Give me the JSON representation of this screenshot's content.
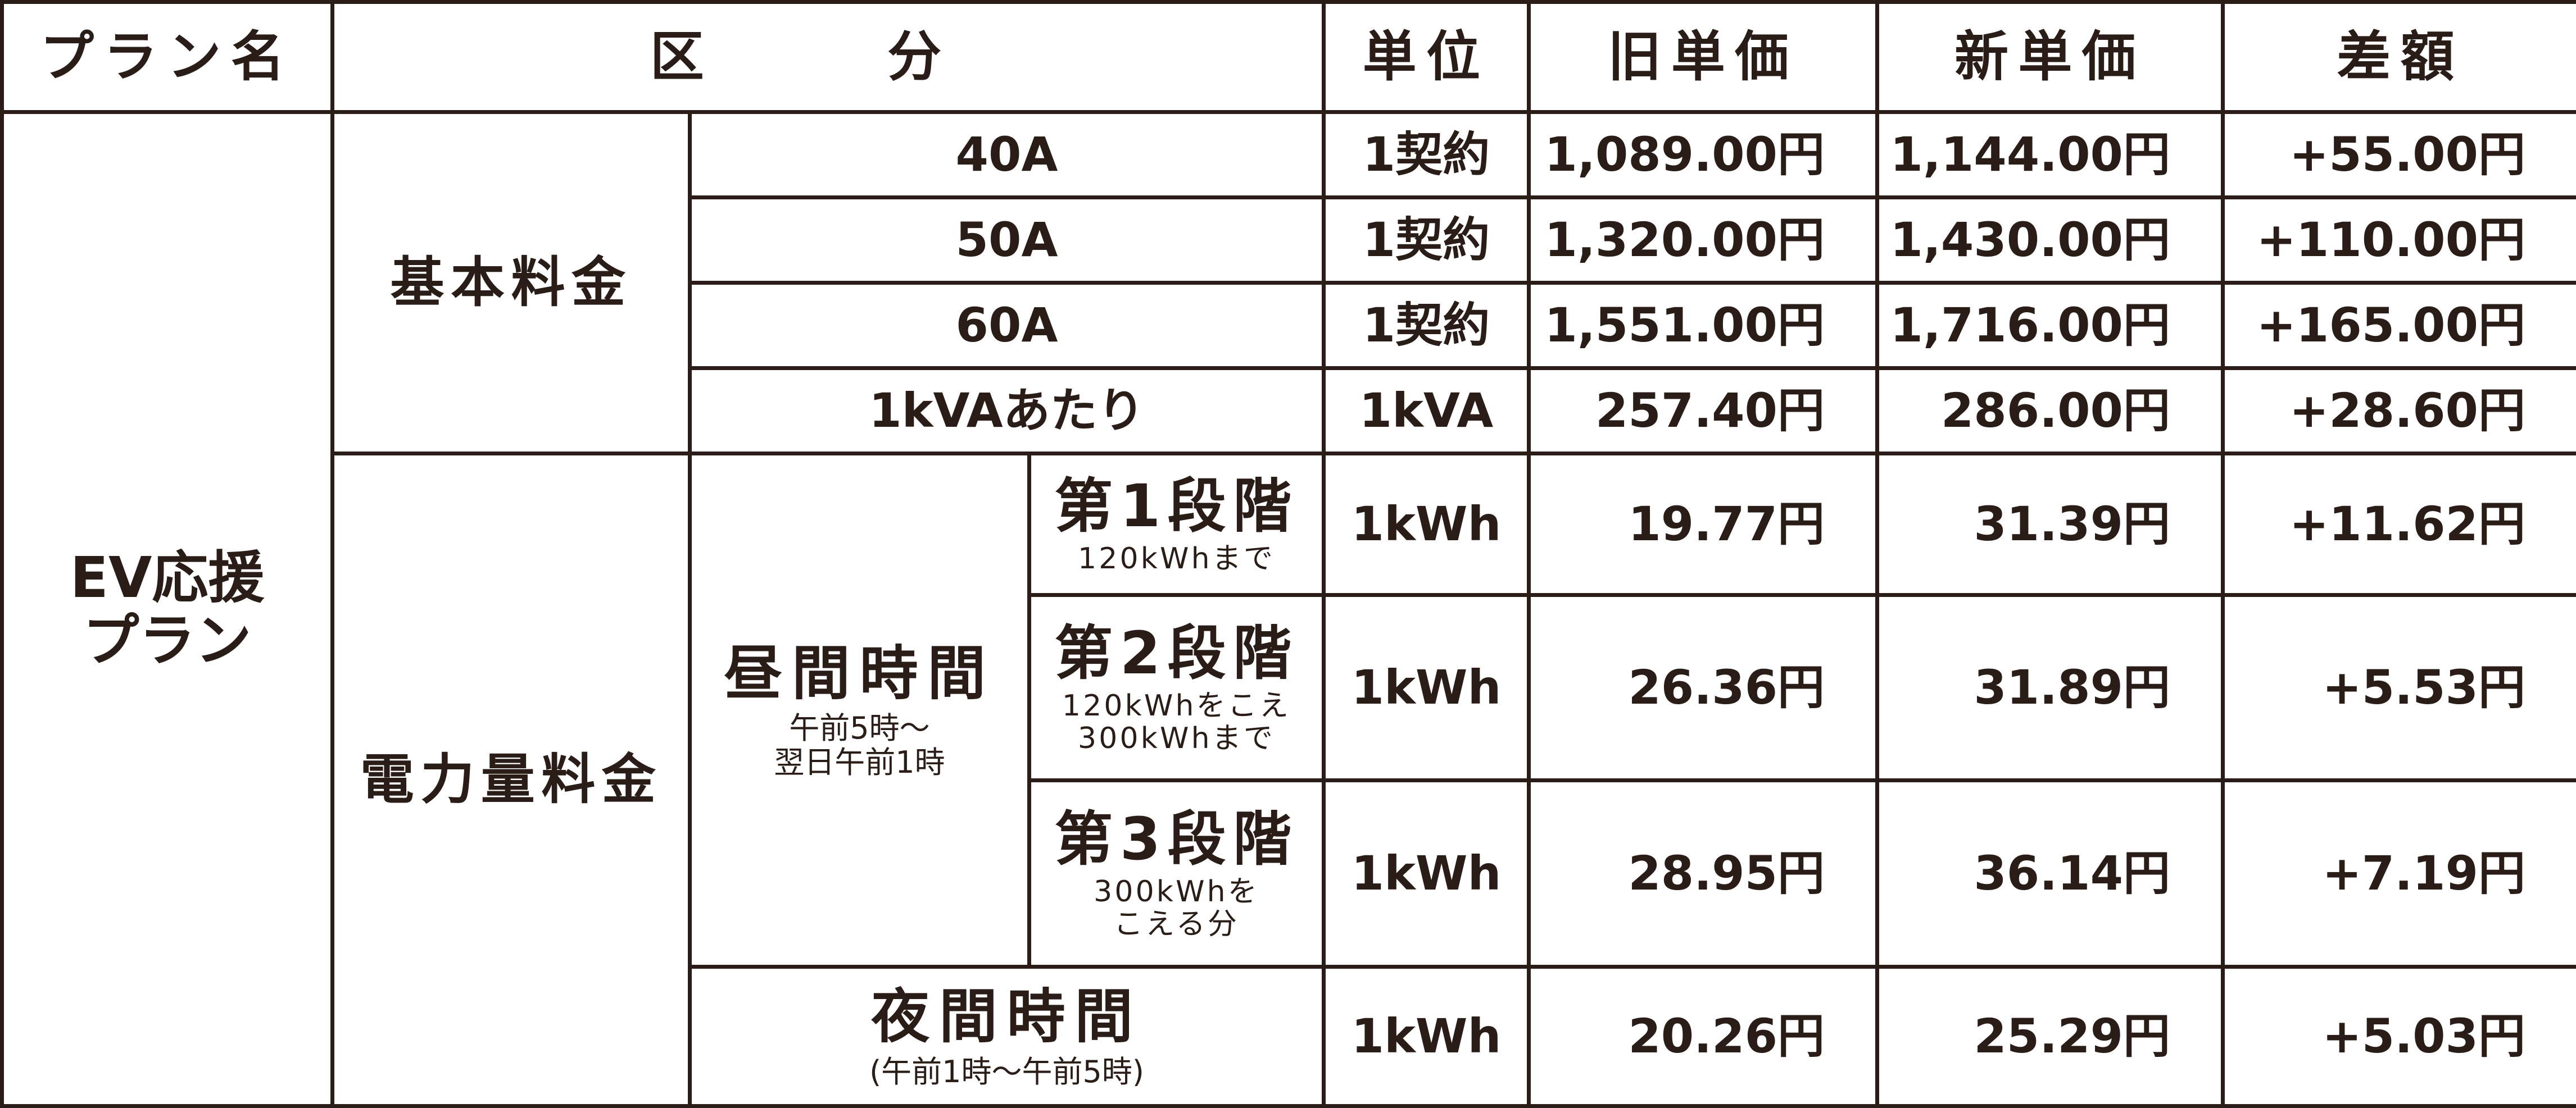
{
  "table": {
    "headers": {
      "plan": "プラン名",
      "category": "区　分",
      "unit": "単位",
      "old": "旧単価",
      "new": "新単価",
      "diff": "差額"
    },
    "plan_name": {
      "line1": "EV応援",
      "line2": "プラン"
    },
    "basic": {
      "label": "基本料金",
      "rows": [
        {
          "sub": "40A",
          "unit": "1契約",
          "old": "1,089.00円",
          "new": "1,144.00円",
          "diff": "+55.00円"
        },
        {
          "sub": "50A",
          "unit": "1契約",
          "old": "1,320.00円",
          "new": "1,430.00円",
          "diff": "+110.00円"
        },
        {
          "sub": "60A",
          "unit": "1契約",
          "old": "1,551.00円",
          "new": "1,716.00円",
          "diff": "+165.00円"
        },
        {
          "sub": "1kVAあたり",
          "unit": "1kVA",
          "old": "257.40円",
          "new": "286.00円",
          "diff": "+28.60円"
        }
      ]
    },
    "energy": {
      "label": "電力量料金",
      "day": {
        "label": "昼間時間",
        "note1": "午前5時～",
        "note2": "翌日午前1時"
      },
      "stages": [
        {
          "name": "第1段階",
          "note1": "120kWhまで",
          "note2": "",
          "unit": "1kWh",
          "old": "19.77円",
          "new": "31.39円",
          "diff": "+11.62円"
        },
        {
          "name": "第2段階",
          "note1": "120kWhをこえ",
          "note2": "300kWhまで",
          "unit": "1kWh",
          "old": "26.36円",
          "new": "31.89円",
          "diff": "+5.53円"
        },
        {
          "name": "第3段階",
          "note1": "300kWhを",
          "note2": "こえる分",
          "unit": "1kWh",
          "old": "28.95円",
          "new": "36.14円",
          "diff": "+7.19円"
        }
      ],
      "night": {
        "label": "夜間時間",
        "note": "(午前1時～午前5時)",
        "unit": "1kWh",
        "old": "20.26円",
        "new": "25.29円",
        "diff": "+5.03円"
      }
    }
  }
}
